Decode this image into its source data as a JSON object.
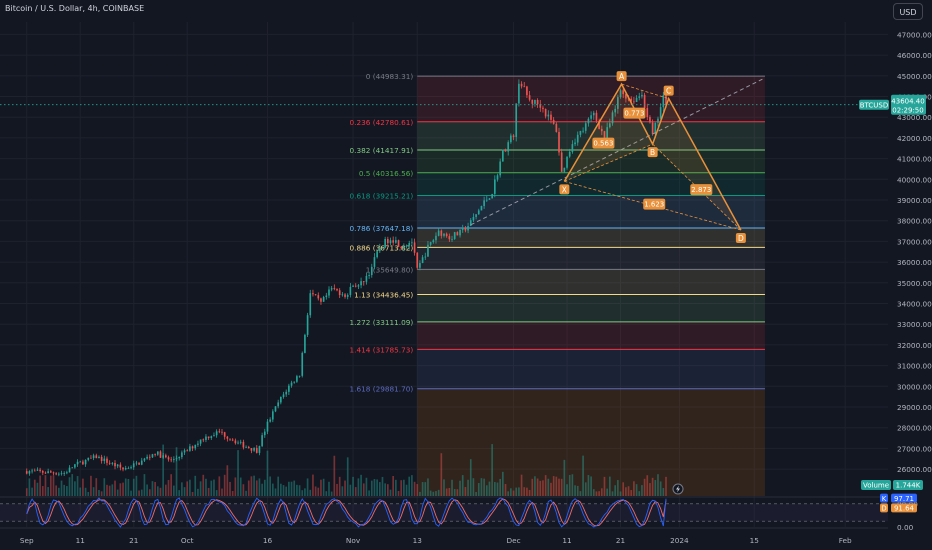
{
  "header": {
    "symbol_title": "Bitcoin / U.S. Dollar, 4h, COINBASE",
    "currency": "USD"
  },
  "colors": {
    "background": "#131722",
    "grid": "#1e222d",
    "axis_text": "#b2b5be",
    "up_candle": "#26a69a",
    "down_candle": "#ef5350",
    "harmonic": "#e8913a",
    "price_line": "#26a69a",
    "stoch_k": "#2962ff",
    "stoch_d": "#ef6c6c"
  },
  "price_badge": {
    "ticker": "BTCUSD",
    "price": "43604.40",
    "countdown": "02:29:50",
    "value": 43604.4
  },
  "volume_badge": {
    "label": "Volume",
    "value": "1.744K"
  },
  "stoch_badges": {
    "k_label": "K",
    "k_value": "97.71",
    "d_label": "D",
    "d_value": "91.64"
  },
  "chart_data": {
    "type": "candlestick",
    "ylim": [
      24700,
      47600
    ],
    "y_ticks": [
      "47000.00",
      "46000.00",
      "45000.00",
      "44000.00",
      "43000.00",
      "42000.00",
      "41000.00",
      "40000.00",
      "39000.00",
      "38000.00",
      "37000.00",
      "36000.00",
      "35000.00",
      "34000.00",
      "33000.00",
      "32000.00",
      "31000.00",
      "30000.00",
      "29000.00",
      "28000.00",
      "27000.00",
      "26000.00"
    ],
    "y_tick_values": [
      47000,
      46000,
      45000,
      44000,
      43000,
      42000,
      41000,
      40000,
      39000,
      38000,
      37000,
      36000,
      35000,
      34000,
      33000,
      32000,
      31000,
      30000,
      29000,
      28000,
      27000,
      26000
    ],
    "x_ticks": [
      {
        "label": "Sep",
        "day": 0
      },
      {
        "label": "11",
        "day": 10
      },
      {
        "label": "21",
        "day": 20
      },
      {
        "label": "Oct",
        "day": 30
      },
      {
        "label": "16",
        "day": 45
      },
      {
        "label": "Nov",
        "day": 61
      },
      {
        "label": "13",
        "day": 73
      },
      {
        "label": "Dec",
        "day": 91
      },
      {
        "label": "11",
        "day": 101
      },
      {
        "label": "21",
        "day": 111
      },
      {
        "label": "2024",
        "day": 122
      },
      {
        "label": "15",
        "day": 136
      },
      {
        "label": "Feb",
        "day": 153
      }
    ],
    "price_path": [
      [
        0,
        25900
      ],
      [
        7,
        25800
      ],
      [
        9,
        26200
      ],
      [
        13,
        26600
      ],
      [
        18,
        26000
      ],
      [
        21,
        26300
      ],
      [
        24,
        26800
      ],
      [
        27,
        26400
      ],
      [
        30,
        26900
      ],
      [
        33,
        27500
      ],
      [
        36,
        27800
      ],
      [
        40,
        27200
      ],
      [
        43,
        26900
      ],
      [
        45,
        28200
      ],
      [
        47,
        29200
      ],
      [
        49,
        30000
      ],
      [
        51,
        30600
      ],
      [
        53,
        34500
      ],
      [
        55,
        34000
      ],
      [
        57,
        34700
      ],
      [
        60,
        34400
      ],
      [
        61,
        35000
      ],
      [
        62,
        34800
      ],
      [
        64,
        35500
      ],
      [
        66,
        36700
      ],
      [
        68,
        37200
      ],
      [
        70,
        36800
      ],
      [
        72,
        37000
      ],
      [
        73,
        35600
      ],
      [
        75,
        36700
      ],
      [
        77,
        37500
      ],
      [
        79,
        37200
      ],
      [
        81,
        37400
      ],
      [
        83,
        37900
      ],
      [
        85,
        38700
      ],
      [
        87,
        39400
      ],
      [
        89,
        41300
      ],
      [
        91,
        42200
      ],
      [
        92,
        44800
      ],
      [
        94,
        43800
      ],
      [
        96,
        43600
      ],
      [
        99,
        42400
      ],
      [
        100,
        40300
      ],
      [
        102,
        41800
      ],
      [
        104,
        42400
      ],
      [
        106,
        43200
      ],
      [
        108,
        42000
      ],
      [
        110,
        43400
      ],
      [
        111,
        44300
      ],
      [
        113,
        43800
      ],
      [
        115,
        44100
      ],
      [
        117,
        42100
      ],
      [
        119,
        43900
      ],
      [
        119.8,
        43600
      ]
    ],
    "fibonacci": [
      {
        "ratio": "0",
        "price": 44983.31,
        "label": "0 (44983.31)",
        "color": "#787b86"
      },
      {
        "ratio": "0.236",
        "price": 42780.61,
        "label": "0.236 (42780.61)",
        "color": "#f23645"
      },
      {
        "ratio": "0.382",
        "price": 41417.91,
        "label": "0.382 (41417.91)",
        "color": "#81c784"
      },
      {
        "ratio": "0.5",
        "price": 40316.56,
        "label": "0.5 (40316.56)",
        "color": "#4caf50"
      },
      {
        "ratio": "0.618",
        "price": 39215.21,
        "label": "0.618 (39215.21)",
        "color": "#089981"
      },
      {
        "ratio": "0.786",
        "price": 37647.18,
        "label": "0.786 (37647.18)",
        "color": "#64b5f6"
      },
      {
        "ratio": "0.886",
        "price": 36713.82,
        "label": "0.886 (36713.82)",
        "color": "#f5d98b"
      },
      {
        "ratio": "1",
        "price": 35649.8,
        "label": "1 (35649.80)",
        "color": "#787b86"
      },
      {
        "ratio": "1.13",
        "price": 34436.45,
        "label": "1.13 (34436.45)",
        "color": "#f5d98b"
      },
      {
        "ratio": "1.272",
        "price": 33111.09,
        "label": "1.272 (33111.09)",
        "color": "#81c784"
      },
      {
        "ratio": "1.414",
        "price": 31785.73,
        "label": "1.414 (31785.73)",
        "color": "#f23645"
      },
      {
        "ratio": "1.618",
        "price": 29881.7,
        "label": "1.618 (29881.70)",
        "color": "#5c6bc0"
      }
    ],
    "fib_box_days": [
      73,
      138
    ],
    "harmonic_points": [
      {
        "label": "X",
        "day": 100.5,
        "price": 39900
      },
      {
        "label": "A",
        "day": 111.2,
        "price": 44600
      },
      {
        "label": "B",
        "day": 117,
        "price": 41700
      },
      {
        "label": "C",
        "day": 120,
        "price": 43900
      },
      {
        "label": "D",
        "day": 133.5,
        "price": 37550
      }
    ],
    "harmonic_ratios": [
      {
        "label": "0.773",
        "day": 113.6,
        "price": 43200
      },
      {
        "label": "0.563",
        "day": 107.8,
        "price": 41750
      },
      {
        "label": "1.623",
        "day": 117.3,
        "price": 38800
      },
      {
        "label": "2.873",
        "day": 126.1,
        "price": 39500
      }
    ],
    "trendline": {
      "from": [
        83,
        37800
      ],
      "to": [
        138,
        44900
      ]
    },
    "volume_last": 1.744,
    "stochastic": {
      "k_last": 97.71,
      "d_last": 91.64
    },
    "stoch_ticks": [
      "80.00",
      "0.00"
    ],
    "stoch_tick_values": [
      80,
      0
    ]
  }
}
